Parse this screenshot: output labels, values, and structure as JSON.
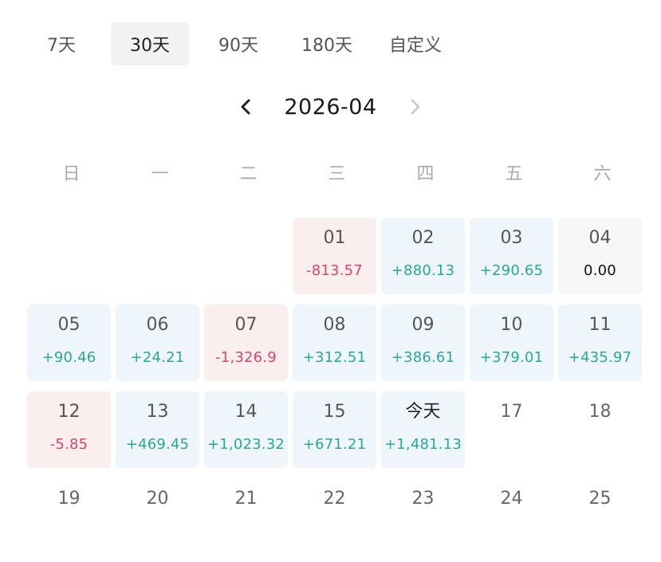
{
  "tabs": [
    {
      "label": "7天",
      "active": false
    },
    {
      "label": "30天",
      "active": true
    },
    {
      "label": "90天",
      "active": false
    },
    {
      "label": "180天",
      "active": false
    },
    {
      "label": "自定义",
      "active": false
    }
  ],
  "month_title": "2026-04",
  "weekdays": [
    "日",
    "一",
    "二",
    "三",
    "四",
    "五",
    "六"
  ],
  "start_offset": 3,
  "days": [
    {
      "label": "01",
      "amount": "-813.57",
      "type": "neg"
    },
    {
      "label": "02",
      "amount": "+880.13",
      "type": "pos"
    },
    {
      "label": "03",
      "amount": "+290.65",
      "type": "pos"
    },
    {
      "label": "04",
      "amount": "0.00",
      "type": "zero"
    },
    {
      "label": "05",
      "amount": "+90.46",
      "type": "pos"
    },
    {
      "label": "06",
      "amount": "+24.21",
      "type": "pos"
    },
    {
      "label": "07",
      "amount": "-1,326.9",
      "type": "neg"
    },
    {
      "label": "08",
      "amount": "+312.51",
      "type": "pos"
    },
    {
      "label": "09",
      "amount": "+386.61",
      "type": "pos"
    },
    {
      "label": "10",
      "amount": "+379.01",
      "type": "pos"
    },
    {
      "label": "11",
      "amount": "+435.97",
      "type": "pos"
    },
    {
      "label": "12",
      "amount": "-5.85",
      "type": "neg"
    },
    {
      "label": "13",
      "amount": "+469.45",
      "type": "pos"
    },
    {
      "label": "14",
      "amount": "+1,023.32",
      "type": "pos"
    },
    {
      "label": "15",
      "amount": "+671.21",
      "type": "pos"
    },
    {
      "label": "今天",
      "amount": "+1,481.13",
      "type": "pos",
      "today": true
    },
    {
      "label": "17",
      "amount": "",
      "type": "future"
    },
    {
      "label": "18",
      "amount": "",
      "type": "future"
    },
    {
      "label": "19",
      "amount": "",
      "type": "future"
    },
    {
      "label": "20",
      "amount": "",
      "type": "future"
    },
    {
      "label": "21",
      "amount": "",
      "type": "future"
    },
    {
      "label": "22",
      "amount": "",
      "type": "future"
    },
    {
      "label": "23",
      "amount": "",
      "type": "future"
    },
    {
      "label": "24",
      "amount": "",
      "type": "future"
    },
    {
      "label": "25",
      "amount": "",
      "type": "future"
    }
  ],
  "colors": {
    "positive": "#2aa69a",
    "negative": "#d9466e",
    "positive_bg": "#eef6fc",
    "negative_bg": "#fbeeee"
  },
  "icons": {
    "prev": "chevron-left-icon",
    "next": "chevron-right-icon"
  }
}
